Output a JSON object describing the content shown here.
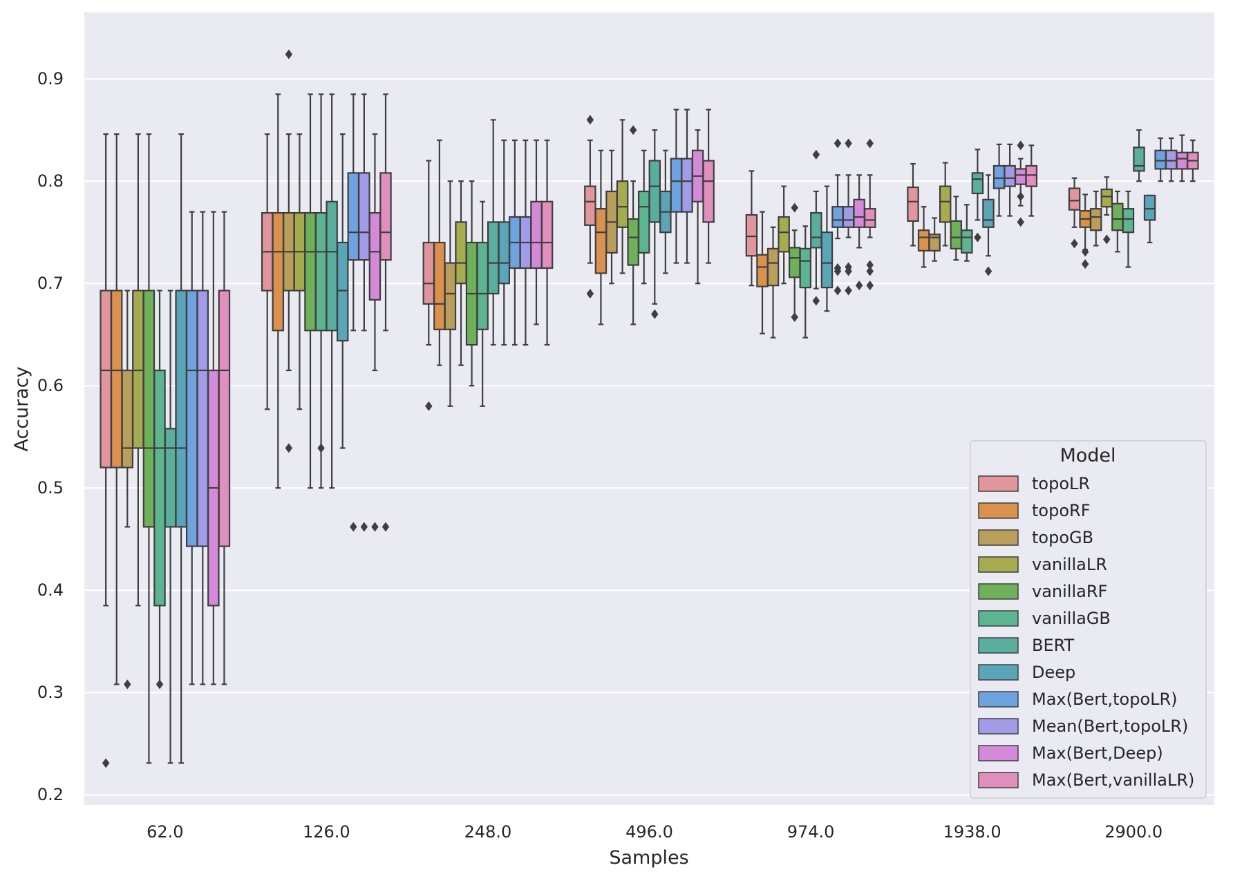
{
  "chart_data": {
    "type": "box",
    "xlabel": "Samples",
    "ylabel": "Accuracy",
    "ylim": [
      0.19,
      0.965
    ],
    "yticks": [
      0.2,
      0.3,
      0.4,
      0.5,
      0.6,
      0.7,
      0.8,
      0.9
    ],
    "ytick_labels": [
      "0.2",
      "0.3",
      "0.4",
      "0.5",
      "0.6",
      "0.7",
      "0.8",
      "0.9"
    ],
    "categories": [
      "62.0",
      "126.0",
      "248.0",
      "496.0",
      "974.0",
      "1938.0",
      "2900.0"
    ],
    "grid": true,
    "legend": {
      "title": "Model",
      "placement": "lower-right"
    },
    "series": [
      {
        "name": "topoLR",
        "color": "#e1959c",
        "boxes": [
          {
            "whislo": 0.385,
            "q1": 0.52,
            "med": 0.615,
            "q3": 0.693,
            "whishi": 0.846,
            "fliers": [
              0.231
            ]
          },
          {
            "whislo": 0.577,
            "q1": 0.693,
            "med": 0.731,
            "q3": 0.769,
            "whishi": 0.846,
            "fliers": []
          },
          {
            "whislo": 0.64,
            "q1": 0.68,
            "med": 0.7,
            "q3": 0.74,
            "whishi": 0.82,
            "fliers": [
              0.58
            ]
          },
          {
            "whislo": 0.72,
            "q1": 0.757,
            "med": 0.78,
            "q3": 0.795,
            "whishi": 0.84,
            "fliers": [
              0.86,
              0.69
            ]
          },
          {
            "whislo": 0.698,
            "q1": 0.727,
            "med": 0.746,
            "q3": 0.767,
            "whishi": 0.81,
            "fliers": []
          },
          {
            "whislo": 0.737,
            "q1": 0.761,
            "med": 0.78,
            "q3": 0.794,
            "whishi": 0.817,
            "fliers": []
          },
          {
            "whislo": 0.755,
            "q1": 0.772,
            "med": 0.781,
            "q3": 0.793,
            "whishi": 0.803,
            "fliers": [
              0.739
            ]
          }
        ]
      },
      {
        "name": "topoRF",
        "color": "#d9914d",
        "boxes": [
          {
            "whislo": 0.308,
            "q1": 0.52,
            "med": 0.615,
            "q3": 0.693,
            "whishi": 0.846,
            "fliers": []
          },
          {
            "whislo": 0.5,
            "q1": 0.654,
            "med": 0.731,
            "q3": 0.769,
            "whishi": 0.885,
            "fliers": []
          },
          {
            "whislo": 0.62,
            "q1": 0.655,
            "med": 0.68,
            "q3": 0.74,
            "whishi": 0.84,
            "fliers": []
          },
          {
            "whislo": 0.66,
            "q1": 0.71,
            "med": 0.75,
            "q3": 0.773,
            "whishi": 0.83,
            "fliers": []
          },
          {
            "whislo": 0.651,
            "q1": 0.697,
            "med": 0.716,
            "q3": 0.728,
            "whishi": 0.77,
            "fliers": []
          },
          {
            "whislo": 0.716,
            "q1": 0.732,
            "med": 0.745,
            "q3": 0.752,
            "whishi": 0.775,
            "fliers": []
          },
          {
            "whislo": 0.733,
            "q1": 0.755,
            "med": 0.763,
            "q3": 0.771,
            "whishi": 0.787,
            "fliers": [
              0.719,
              0.731
            ]
          }
        ]
      },
      {
        "name": "topoGB",
        "color": "#ba9e5b",
        "boxes": [
          {
            "whislo": 0.462,
            "q1": 0.52,
            "med": 0.539,
            "q3": 0.615,
            "whishi": 0.693,
            "fliers": [
              0.308
            ]
          },
          {
            "whislo": 0.615,
            "q1": 0.693,
            "med": 0.731,
            "q3": 0.769,
            "whishi": 0.846,
            "fliers": [
              0.924,
              0.539
            ]
          },
          {
            "whislo": 0.58,
            "q1": 0.655,
            "med": 0.69,
            "q3": 0.72,
            "whishi": 0.8,
            "fliers": []
          },
          {
            "whislo": 0.7,
            "q1": 0.73,
            "med": 0.76,
            "q3": 0.79,
            "whishi": 0.83,
            "fliers": []
          },
          {
            "whislo": 0.647,
            "q1": 0.698,
            "med": 0.72,
            "q3": 0.734,
            "whishi": 0.755,
            "fliers": []
          },
          {
            "whislo": 0.722,
            "q1": 0.732,
            "med": 0.745,
            "q3": 0.748,
            "whishi": 0.764,
            "fliers": []
          },
          {
            "whislo": 0.737,
            "q1": 0.752,
            "med": 0.765,
            "q3": 0.773,
            "whishi": 0.79,
            "fliers": []
          }
        ]
      },
      {
        "name": "vanillaLR",
        "color": "#a6ab50",
        "boxes": [
          {
            "whislo": 0.385,
            "q1": 0.539,
            "med": 0.615,
            "q3": 0.693,
            "whishi": 0.846,
            "fliers": []
          },
          {
            "whislo": 0.577,
            "q1": 0.693,
            "med": 0.731,
            "q3": 0.769,
            "whishi": 0.846,
            "fliers": []
          },
          {
            "whislo": 0.62,
            "q1": 0.7,
            "med": 0.72,
            "q3": 0.76,
            "whishi": 0.8,
            "fliers": []
          },
          {
            "whislo": 0.71,
            "q1": 0.755,
            "med": 0.775,
            "q3": 0.8,
            "whishi": 0.86,
            "fliers": []
          },
          {
            "whislo": 0.7,
            "q1": 0.731,
            "med": 0.75,
            "q3": 0.765,
            "whishi": 0.795,
            "fliers": []
          },
          {
            "whislo": 0.737,
            "q1": 0.76,
            "med": 0.78,
            "q3": 0.795,
            "whishi": 0.818,
            "fliers": []
          },
          {
            "whislo": 0.767,
            "q1": 0.775,
            "med": 0.785,
            "q3": 0.792,
            "whishi": 0.804,
            "fliers": [
              0.743
            ]
          }
        ]
      },
      {
        "name": "vanillaRF",
        "color": "#6fb05a",
        "boxes": [
          {
            "whislo": 0.231,
            "q1": 0.462,
            "med": 0.539,
            "q3": 0.693,
            "whishi": 0.846,
            "fliers": []
          },
          {
            "whislo": 0.5,
            "q1": 0.654,
            "med": 0.731,
            "q3": 0.769,
            "whishi": 0.885,
            "fliers": []
          },
          {
            "whislo": 0.6,
            "q1": 0.64,
            "med": 0.69,
            "q3": 0.74,
            "whishi": 0.8,
            "fliers": []
          },
          {
            "whislo": 0.66,
            "q1": 0.718,
            "med": 0.745,
            "q3": 0.763,
            "whishi": 0.8,
            "fliers": [
              0.85
            ]
          },
          {
            "whislo": 0.667,
            "q1": 0.706,
            "med": 0.725,
            "q3": 0.735,
            "whishi": 0.752,
            "fliers": [
              0.774,
              0.667
            ]
          },
          {
            "whislo": 0.723,
            "q1": 0.734,
            "med": 0.745,
            "q3": 0.761,
            "whishi": 0.785,
            "fliers": []
          },
          {
            "whislo": 0.731,
            "q1": 0.752,
            "med": 0.763,
            "q3": 0.778,
            "whishi": 0.79,
            "fliers": []
          }
        ]
      },
      {
        "name": "vanillaGB",
        "color": "#5db491",
        "boxes": [
          {
            "whislo": 0.308,
            "q1": 0.385,
            "med": 0.539,
            "q3": 0.615,
            "whishi": 0.693,
            "fliers": [
              0.308
            ]
          },
          {
            "whislo": 0.5,
            "q1": 0.654,
            "med": 0.731,
            "q3": 0.769,
            "whishi": 0.885,
            "fliers": [
              0.539
            ]
          },
          {
            "whislo": 0.58,
            "q1": 0.655,
            "med": 0.69,
            "q3": 0.74,
            "whishi": 0.78,
            "fliers": []
          },
          {
            "whislo": 0.7,
            "q1": 0.73,
            "med": 0.775,
            "q3": 0.79,
            "whishi": 0.83,
            "fliers": []
          },
          {
            "whislo": 0.647,
            "q1": 0.696,
            "med": 0.722,
            "q3": 0.734,
            "whishi": 0.756,
            "fliers": []
          },
          {
            "whislo": 0.722,
            "q1": 0.73,
            "med": 0.745,
            "q3": 0.752,
            "whishi": 0.777,
            "fliers": []
          },
          {
            "whislo": 0.716,
            "q1": 0.75,
            "med": 0.763,
            "q3": 0.773,
            "whishi": 0.79,
            "fliers": []
          }
        ]
      },
      {
        "name": "BERT",
        "color": "#5aae9e",
        "boxes": [
          {
            "whislo": 0.231,
            "q1": 0.462,
            "med": 0.539,
            "q3": 0.558,
            "whishi": 0.693,
            "fliers": []
          },
          {
            "whislo": 0.5,
            "q1": 0.654,
            "med": 0.731,
            "q3": 0.78,
            "whishi": 0.885,
            "fliers": []
          },
          {
            "whislo": 0.64,
            "q1": 0.69,
            "med": 0.72,
            "q3": 0.76,
            "whishi": 0.86,
            "fliers": []
          },
          {
            "whislo": 0.68,
            "q1": 0.76,
            "med": 0.795,
            "q3": 0.82,
            "whishi": 0.85,
            "fliers": [
              0.67
            ]
          },
          {
            "whislo": 0.695,
            "q1": 0.735,
            "med": 0.745,
            "q3": 0.769,
            "whishi": 0.79,
            "fliers": [
              0.826,
              0.683
            ]
          },
          {
            "whislo": 0.762,
            "q1": 0.788,
            "med": 0.802,
            "q3": 0.808,
            "whishi": 0.831,
            "fliers": [
              0.745
            ]
          },
          {
            "whislo": 0.8,
            "q1": 0.81,
            "med": 0.815,
            "q3": 0.833,
            "whishi": 0.85,
            "fliers": []
          }
        ]
      },
      {
        "name": "Deep",
        "color": "#5aa6b8",
        "boxes": [
          {
            "whislo": 0.231,
            "q1": 0.462,
            "med": 0.539,
            "q3": 0.693,
            "whishi": 0.846,
            "fliers": []
          },
          {
            "whislo": 0.539,
            "q1": 0.644,
            "med": 0.693,
            "q3": 0.74,
            "whishi": 0.846,
            "fliers": []
          },
          {
            "whislo": 0.64,
            "q1": 0.7,
            "med": 0.72,
            "q3": 0.76,
            "whishi": 0.84,
            "fliers": []
          },
          {
            "whislo": 0.71,
            "q1": 0.75,
            "med": 0.77,
            "q3": 0.79,
            "whishi": 0.83,
            "fliers": []
          },
          {
            "whislo": 0.673,
            "q1": 0.696,
            "med": 0.72,
            "q3": 0.75,
            "whishi": 0.795,
            "fliers": []
          },
          {
            "whislo": 0.727,
            "q1": 0.755,
            "med": 0.762,
            "q3": 0.782,
            "whishi": 0.806,
            "fliers": [
              0.712
            ]
          },
          {
            "whislo": 0.74,
            "q1": 0.762,
            "med": 0.773,
            "q3": 0.786,
            "whishi": 0.786,
            "fliers": []
          }
        ]
      },
      {
        "name": "Max(Bert,topoLR)",
        "color": "#6fa3e0",
        "boxes": [
          {
            "whislo": 0.308,
            "q1": 0.443,
            "med": 0.615,
            "q3": 0.693,
            "whishi": 0.77,
            "fliers": []
          },
          {
            "whislo": 0.654,
            "q1": 0.723,
            "med": 0.75,
            "q3": 0.808,
            "whishi": 0.885,
            "fliers": [
              0.462
            ]
          },
          {
            "whislo": 0.64,
            "q1": 0.715,
            "med": 0.74,
            "q3": 0.765,
            "whishi": 0.84,
            "fliers": []
          },
          {
            "whislo": 0.72,
            "q1": 0.77,
            "med": 0.8,
            "q3": 0.822,
            "whishi": 0.87,
            "fliers": []
          },
          {
            "whislo": 0.744,
            "q1": 0.755,
            "med": 0.762,
            "q3": 0.775,
            "whishi": 0.806,
            "fliers": [
              0.837,
              0.715,
              0.712,
              0.693
            ]
          },
          {
            "whislo": 0.766,
            "q1": 0.793,
            "med": 0.803,
            "q3": 0.815,
            "whishi": 0.836,
            "fliers": []
          },
          {
            "whislo": 0.8,
            "q1": 0.812,
            "med": 0.82,
            "q3": 0.83,
            "whishi": 0.842,
            "fliers": []
          }
        ]
      },
      {
        "name": "Mean(Bert,topoLR)",
        "color": "#a29ce8",
        "boxes": [
          {
            "whislo": 0.308,
            "q1": 0.443,
            "med": 0.615,
            "q3": 0.693,
            "whishi": 0.77,
            "fliers": []
          },
          {
            "whislo": 0.654,
            "q1": 0.723,
            "med": 0.75,
            "q3": 0.808,
            "whishi": 0.885,
            "fliers": [
              0.462
            ]
          },
          {
            "whislo": 0.64,
            "q1": 0.715,
            "med": 0.74,
            "q3": 0.765,
            "whishi": 0.84,
            "fliers": []
          },
          {
            "whislo": 0.72,
            "q1": 0.77,
            "med": 0.8,
            "q3": 0.822,
            "whishi": 0.87,
            "fliers": []
          },
          {
            "whislo": 0.745,
            "q1": 0.755,
            "med": 0.762,
            "q3": 0.775,
            "whishi": 0.806,
            "fliers": [
              0.837,
              0.716,
              0.712,
              0.693
            ]
          },
          {
            "whislo": 0.766,
            "q1": 0.795,
            "med": 0.803,
            "q3": 0.815,
            "whishi": 0.836,
            "fliers": []
          },
          {
            "whislo": 0.8,
            "q1": 0.812,
            "med": 0.82,
            "q3": 0.83,
            "whishi": 0.842,
            "fliers": []
          }
        ]
      },
      {
        "name": "Max(Bert,Deep)",
        "color": "#d48ad9",
        "boxes": [
          {
            "whislo": 0.308,
            "q1": 0.385,
            "med": 0.5,
            "q3": 0.615,
            "whishi": 0.77,
            "fliers": []
          },
          {
            "whislo": 0.615,
            "q1": 0.684,
            "med": 0.731,
            "q3": 0.769,
            "whishi": 0.846,
            "fliers": [
              0.462
            ]
          },
          {
            "whislo": 0.66,
            "q1": 0.715,
            "med": 0.74,
            "q3": 0.78,
            "whishi": 0.84,
            "fliers": []
          },
          {
            "whislo": 0.7,
            "q1": 0.78,
            "med": 0.805,
            "q3": 0.83,
            "whishi": 0.85,
            "fliers": []
          },
          {
            "whislo": 0.735,
            "q1": 0.755,
            "med": 0.765,
            "q3": 0.782,
            "whishi": 0.806,
            "fliers": [
              0.698
            ]
          },
          {
            "whislo": 0.776,
            "q1": 0.797,
            "med": 0.806,
            "q3": 0.812,
            "whishi": 0.822,
            "fliers": [
              0.835,
              0.785,
              0.76
            ]
          },
          {
            "whislo": 0.8,
            "q1": 0.812,
            "med": 0.822,
            "q3": 0.828,
            "whishi": 0.845,
            "fliers": []
          }
        ]
      },
      {
        "name": "Max(Bert,vanillaLR)",
        "color": "#e18fbd",
        "boxes": [
          {
            "whislo": 0.308,
            "q1": 0.443,
            "med": 0.615,
            "q3": 0.693,
            "whishi": 0.77,
            "fliers": []
          },
          {
            "whislo": 0.654,
            "q1": 0.723,
            "med": 0.75,
            "q3": 0.808,
            "whishi": 0.885,
            "fliers": [
              0.462
            ]
          },
          {
            "whislo": 0.64,
            "q1": 0.715,
            "med": 0.74,
            "q3": 0.78,
            "whishi": 0.84,
            "fliers": []
          },
          {
            "whislo": 0.72,
            "q1": 0.76,
            "med": 0.8,
            "q3": 0.82,
            "whishi": 0.87,
            "fliers": []
          },
          {
            "whislo": 0.745,
            "q1": 0.755,
            "med": 0.762,
            "q3": 0.773,
            "whishi": 0.806,
            "fliers": [
              0.837,
              0.718,
              0.712,
              0.698
            ]
          },
          {
            "whislo": 0.766,
            "q1": 0.795,
            "med": 0.806,
            "q3": 0.815,
            "whishi": 0.835,
            "fliers": []
          },
          {
            "whislo": 0.8,
            "q1": 0.812,
            "med": 0.82,
            "q3": 0.828,
            "whishi": 0.84,
            "fliers": []
          }
        ]
      }
    ]
  }
}
